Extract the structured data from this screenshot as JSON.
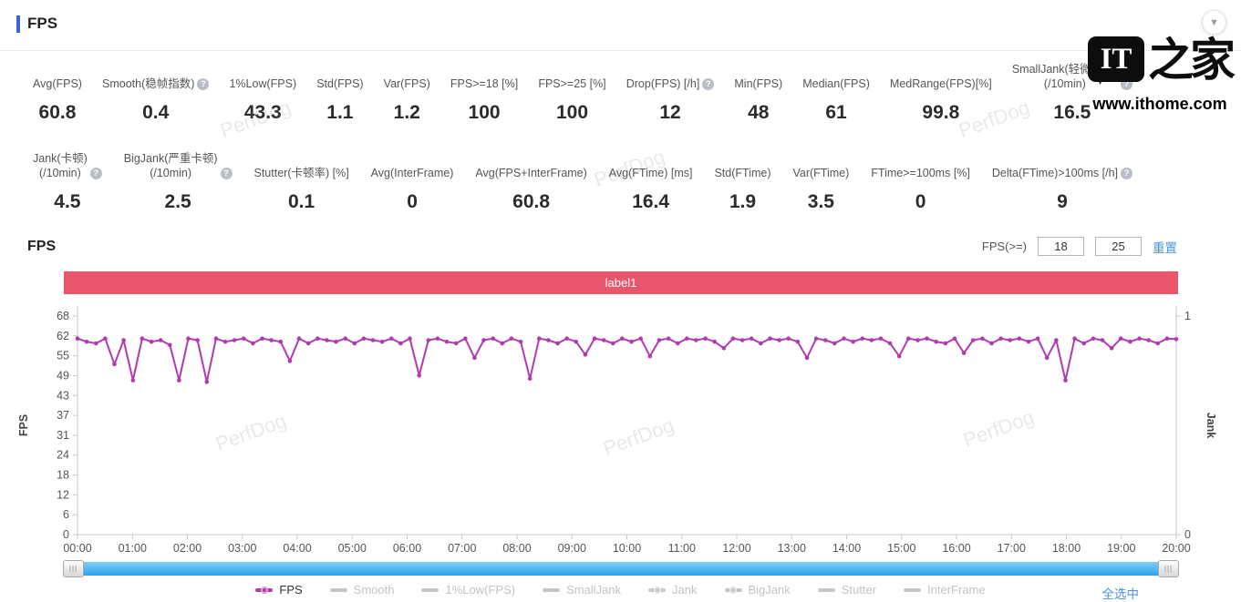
{
  "page": {
    "title": "FPS"
  },
  "stats": {
    "row1": [
      {
        "label": "Avg(FPS)",
        "help": false,
        "value": "60.8"
      },
      {
        "label": "Smooth(稳帧指数)",
        "help": true,
        "value": "0.4"
      },
      {
        "label": "1%Low(FPS)",
        "help": false,
        "value": "43.3"
      },
      {
        "label": "Std(FPS)",
        "help": false,
        "value": "1.1"
      },
      {
        "label": "Var(FPS)",
        "help": false,
        "value": "1.2"
      },
      {
        "label": "FPS>=18 [%]",
        "help": false,
        "value": "100"
      },
      {
        "label": "FPS>=25 [%]",
        "help": false,
        "value": "100"
      },
      {
        "label": "Drop(FPS) [/h]",
        "help": true,
        "value": "12"
      },
      {
        "label": "Min(FPS)",
        "help": false,
        "value": "48"
      },
      {
        "label": "Median(FPS)",
        "help": false,
        "value": "61"
      },
      {
        "label": "MedRange(FPS)[%]",
        "help": false,
        "value": "99.8"
      },
      {
        "label": "SmallJank(轻微卡顿)\n(/10min)",
        "help": true,
        "value": "16.5"
      }
    ],
    "row2": [
      {
        "label": "Jank(卡顿)\n(/10min)",
        "help": true,
        "value": "4.5"
      },
      {
        "label": "BigJank(严重卡顿)\n(/10min)",
        "help": true,
        "value": "2.5"
      },
      {
        "label": "Stutter(卡顿率) [%]",
        "help": false,
        "value": "0.1"
      },
      {
        "label": "Avg(InterFrame)",
        "help": false,
        "value": "0"
      },
      {
        "label": "Avg(FPS+InterFrame)",
        "help": false,
        "value": "60.8"
      },
      {
        "label": "Avg(FTime) [ms]",
        "help": false,
        "value": "16.4"
      },
      {
        "label": "Std(FTime)",
        "help": false,
        "value": "1.9"
      },
      {
        "label": "Var(FTime)",
        "help": false,
        "value": "3.5"
      },
      {
        "label": "FTime>=100ms [%]",
        "help": false,
        "value": "0"
      },
      {
        "label": "Delta(FTime)>100ms [/h]",
        "help": true,
        "value": "9"
      }
    ]
  },
  "section": {
    "title": "FPS",
    "filter_label": "FPS(>=)",
    "input1": "18",
    "input2": "25",
    "reset_label": "重置",
    "chart_label": "label1",
    "select_all": "全选中"
  },
  "icons": {
    "collapse": "▼",
    "help": "?",
    "grip": "|||"
  },
  "legend": [
    {
      "name": "FPS",
      "color": "#b23ab0",
      "text_color": "#333333",
      "dot": true
    },
    {
      "name": "Smooth",
      "color": "#c7c7c7",
      "text_color": "#c3c3c3",
      "dot": false
    },
    {
      "name": "1%Low(FPS)",
      "color": "#c7c7c7",
      "text_color": "#c3c3c3",
      "dot": false
    },
    {
      "name": "SmallJank",
      "color": "#c7c7c7",
      "text_color": "#c3c3c3",
      "dot": false
    },
    {
      "name": "Jank",
      "color": "#c7c7c7",
      "text_color": "#c3c3c3",
      "dot": true
    },
    {
      "name": "BigJank",
      "color": "#c7c7c7",
      "text_color": "#c3c3c3",
      "dot": true
    },
    {
      "name": "Stutter",
      "color": "#c7c7c7",
      "text_color": "#c3c3c3",
      "dot": false
    },
    {
      "name": "InterFrame",
      "color": "#c7c7c7",
      "text_color": "#c3c3c3",
      "dot": false
    }
  ],
  "watermark": {
    "perfdog": "PerfDog",
    "logo_it": "IT",
    "logo_cn": "之家",
    "site": "www.ithome.com"
  },
  "colors": {
    "accent": "#3b63e4",
    "bar_red": "#e8566c",
    "line": "#b23ab0",
    "scrollbar": "#45aef5",
    "link": "#4a90e2"
  },
  "chart_data": {
    "type": "line",
    "title": "label1",
    "xlabel": "",
    "ylabel_left": "FPS",
    "ylabel_right": "Jank",
    "x_ticks": [
      "00:00",
      "01:00",
      "02:00",
      "03:00",
      "04:00",
      "05:00",
      "06:00",
      "07:00",
      "08:00",
      "09:00",
      "10:00",
      "11:00",
      "12:00",
      "13:00",
      "14:00",
      "15:00",
      "16:00",
      "17:00",
      "18:00",
      "19:00",
      "20:00"
    ],
    "y_left_ticks": [
      68,
      62,
      55,
      49,
      43,
      37,
      31,
      24,
      18,
      12,
      6,
      0
    ],
    "y_right_ticks": [
      1,
      0
    ],
    "ylim_left": [
      0,
      68
    ],
    "ylim_right": [
      0,
      1
    ],
    "legend_position": "bottom",
    "grid": false,
    "series": [
      {
        "name": "FPS",
        "color": "#b23ab0",
        "values": [
          61,
          60,
          59.5,
          61,
          53,
          60.5,
          48,
          61,
          60,
          60.5,
          59,
          48,
          61,
          60.5,
          47.5,
          61,
          60,
          60.5,
          61,
          59.5,
          61,
          60.5,
          60,
          54,
          61,
          59.5,
          61,
          60.5,
          60,
          61,
          59.5,
          61,
          60.5,
          60,
          61,
          59.5,
          61,
          49.5,
          60.5,
          61,
          60,
          59.5,
          61,
          55,
          60.5,
          61,
          59.5,
          61,
          60,
          48.5,
          61,
          60.5,
          59.5,
          61,
          60,
          56,
          61,
          60.5,
          59.5,
          61,
          60,
          61,
          55.5,
          60.5,
          61,
          59.5,
          61,
          60.5,
          61,
          60,
          58,
          61,
          60.5,
          61,
          59.5,
          61,
          60.5,
          61,
          60,
          55,
          61,
          60.5,
          59.5,
          61,
          60,
          61,
          60.5,
          61,
          59.5,
          55.5,
          61,
          60.5,
          61,
          60,
          59.5,
          61,
          56.5,
          60.5,
          61,
          59.5,
          61,
          60.5,
          61,
          60,
          61,
          55,
          60.5,
          48,
          61,
          59.5,
          61,
          60.5,
          58,
          61,
          60,
          61,
          60.5,
          59.5,
          61,
          60.8
        ]
      }
    ]
  }
}
